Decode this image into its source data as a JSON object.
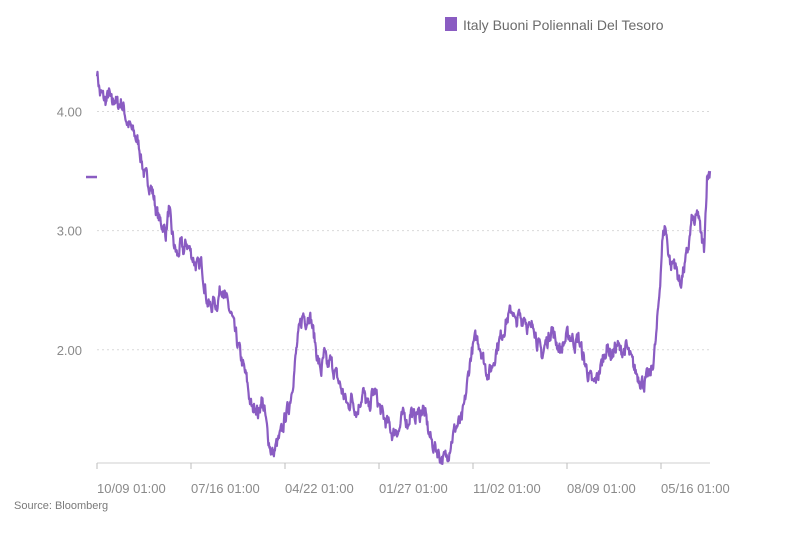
{
  "chart_data": {
    "type": "line",
    "title": "",
    "xlabel": "",
    "ylabel": "",
    "ylim": [
      1.05,
      4.6
    ],
    "y_ticks": [
      2.0,
      3.0,
      4.0
    ],
    "y_tick_labels": [
      "2.00",
      "3.00",
      "4.00"
    ],
    "x_tick_labels": [
      "10/09 01:00",
      "07/16 01:00",
      "04/22 01:00",
      "01/27 01:00",
      "11/02 01:00",
      "08/09 01:00",
      "05/16 01:00"
    ],
    "legend_position": "top-right",
    "last_value_marker": 3.45,
    "series": [
      {
        "name": "Italy Buoni Poliennali Del Tesoro",
        "color": "#8a5cc2",
        "keypoints": [
          [
            0,
            4.35
          ],
          [
            3,
            4.15
          ],
          [
            6,
            4.12
          ],
          [
            9,
            4.08
          ],
          [
            12,
            4.15
          ],
          [
            15,
            4.05
          ],
          [
            18,
            4.12
          ],
          [
            21,
            4.05
          ],
          [
            24,
            4.08
          ],
          [
            27,
            4.02
          ],
          [
            30,
            3.92
          ],
          [
            33,
            3.87
          ],
          [
            36,
            3.82
          ],
          [
            39,
            3.78
          ],
          [
            42,
            3.72
          ],
          [
            45,
            3.58
          ],
          [
            48,
            3.45
          ],
          [
            51,
            3.42
          ],
          [
            54,
            3.38
          ],
          [
            57,
            3.28
          ],
          [
            60,
            3.15
          ],
          [
            63,
            3.08
          ],
          [
            66,
            3.05
          ],
          [
            69,
            2.98
          ],
          [
            72,
            3.18
          ],
          [
            75,
            2.98
          ],
          [
            78,
            2.85
          ],
          [
            81,
            2.78
          ],
          [
            84,
            2.88
          ],
          [
            87,
            2.82
          ],
          [
            90,
            2.9
          ],
          [
            93,
            2.84
          ],
          [
            96,
            2.78
          ],
          [
            99,
            2.72
          ],
          [
            102,
            2.68
          ],
          [
            105,
            2.72
          ],
          [
            108,
            2.55
          ],
          [
            111,
            2.4
          ],
          [
            114,
            2.35
          ],
          [
            117,
            2.4
          ],
          [
            120,
            2.38
          ],
          [
            123,
            2.48
          ],
          [
            126,
            2.55
          ],
          [
            129,
            2.42
          ],
          [
            132,
            2.35
          ],
          [
            135,
            2.28
          ],
          [
            138,
            2.15
          ],
          [
            141,
            2.05
          ],
          [
            144,
            1.95
          ],
          [
            147,
            1.85
          ],
          [
            150,
            1.75
          ],
          [
            153,
            1.6
          ],
          [
            156,
            1.48
          ],
          [
            159,
            1.55
          ],
          [
            162,
            1.45
          ],
          [
            165,
            1.6
          ],
          [
            168,
            1.48
          ],
          [
            171,
            1.3
          ],
          [
            174,
            1.18
          ],
          [
            177,
            1.12
          ],
          [
            180,
            1.2
          ],
          [
            183,
            1.25
          ],
          [
            186,
            1.32
          ],
          [
            189,
            1.45
          ],
          [
            192,
            1.5
          ],
          [
            195,
            1.65
          ],
          [
            198,
            1.85
          ],
          [
            201,
            2.05
          ],
          [
            204,
            2.2
          ],
          [
            207,
            2.3
          ],
          [
            210,
            2.25
          ],
          [
            213,
            2.32
          ],
          [
            216,
            2.2
          ],
          [
            219,
            2.05
          ],
          [
            222,
            1.9
          ],
          [
            225,
            1.82
          ],
          [
            228,
            1.95
          ],
          [
            231,
            1.85
          ],
          [
            234,
            1.9
          ],
          [
            237,
            1.85
          ],
          [
            240,
            1.78
          ],
          [
            243,
            1.72
          ],
          [
            246,
            1.65
          ],
          [
            249,
            1.58
          ],
          [
            252,
            1.52
          ],
          [
            255,
            1.6
          ],
          [
            258,
            1.55
          ],
          [
            261,
            1.48
          ],
          [
            264,
            1.58
          ],
          [
            267,
            1.65
          ],
          [
            270,
            1.55
          ],
          [
            273,
            1.5
          ],
          [
            276,
            1.62
          ],
          [
            279,
            1.65
          ],
          [
            282,
            1.55
          ],
          [
            285,
            1.48
          ],
          [
            288,
            1.42
          ],
          [
            291,
            1.38
          ],
          [
            294,
            1.35
          ],
          [
            297,
            1.28
          ],
          [
            300,
            1.35
          ],
          [
            303,
            1.32
          ],
          [
            306,
            1.42
          ],
          [
            309,
            1.45
          ],
          [
            312,
            1.38
          ],
          [
            315,
            1.5
          ],
          [
            318,
            1.42
          ],
          [
            321,
            1.48
          ],
          [
            324,
            1.45
          ],
          [
            327,
            1.52
          ],
          [
            330,
            1.42
          ],
          [
            333,
            1.3
          ],
          [
            336,
            1.22
          ],
          [
            339,
            1.18
          ],
          [
            342,
            1.15
          ],
          [
            345,
            1.1
          ],
          [
            348,
            1.08
          ],
          [
            351,
            1.1
          ],
          [
            354,
            1.2
          ],
          [
            357,
            1.28
          ],
          [
            360,
            1.35
          ],
          [
            363,
            1.38
          ],
          [
            366,
            1.4
          ],
          [
            369,
            1.55
          ],
          [
            372,
            1.75
          ],
          [
            375,
            1.95
          ],
          [
            378,
            2.05
          ],
          [
            381,
            2.1
          ],
          [
            384,
            2.05
          ],
          [
            387,
            1.95
          ],
          [
            390,
            1.85
          ],
          [
            393,
            1.8
          ],
          [
            396,
            1.85
          ],
          [
            399,
            1.95
          ],
          [
            402,
            2.05
          ],
          [
            405,
            2.1
          ],
          [
            408,
            2.18
          ],
          [
            411,
            2.25
          ],
          [
            414,
            2.3
          ],
          [
            417,
            2.35
          ],
          [
            420,
            2.2
          ],
          [
            423,
            2.28
          ],
          [
            426,
            2.25
          ],
          [
            429,
            2.3
          ],
          [
            432,
            2.2
          ],
          [
            435,
            2.15
          ],
          [
            438,
            2.25
          ],
          [
            441,
            2.1
          ],
          [
            444,
            2.0
          ],
          [
            447,
            1.95
          ],
          [
            450,
            2.05
          ],
          [
            453,
            2.1
          ],
          [
            456,
            2.2
          ],
          [
            459,
            2.1
          ],
          [
            462,
            2.05
          ],
          [
            465,
            2.0
          ],
          [
            468,
            2.05
          ],
          [
            471,
            2.1
          ],
          [
            474,
            2.12
          ],
          [
            477,
            2.1
          ],
          [
            480,
            2.05
          ],
          [
            483,
            2.1
          ],
          [
            486,
            2.0
          ],
          [
            489,
            1.9
          ],
          [
            492,
            1.82
          ],
          [
            495,
            1.75
          ],
          [
            498,
            1.7
          ],
          [
            501,
            1.75
          ],
          [
            504,
            1.82
          ],
          [
            507,
            1.9
          ],
          [
            510,
            2.0
          ],
          [
            513,
            2.02
          ],
          [
            516,
            1.95
          ],
          [
            519,
            2.0
          ],
          [
            522,
            2.05
          ],
          [
            525,
            1.98
          ],
          [
            528,
            2.0
          ],
          [
            531,
            2.02
          ],
          [
            534,
            1.95
          ],
          [
            537,
            1.88
          ],
          [
            540,
            1.82
          ],
          [
            543,
            1.78
          ],
          [
            546,
            1.75
          ],
          [
            549,
            1.72
          ],
          [
            552,
            1.76
          ],
          [
            555,
            1.78
          ],
          [
            558,
            1.9
          ],
          [
            561,
            2.1
          ],
          [
            564,
            2.45
          ],
          [
            567,
            2.9
          ],
          [
            570,
            3.05
          ],
          [
            573,
            2.85
          ],
          [
            576,
            2.7
          ],
          [
            579,
            2.75
          ],
          [
            582,
            2.65
          ],
          [
            585,
            2.55
          ],
          [
            588,
            2.65
          ],
          [
            591,
            2.75
          ],
          [
            594,
            2.9
          ],
          [
            597,
            3.1
          ],
          [
            600,
            3.05
          ],
          [
            603,
            3.15
          ],
          [
            606,
            2.95
          ],
          [
            609,
            2.85
          ],
          [
            612,
            3.45
          ],
          [
            615,
            3.5
          ]
        ]
      }
    ]
  },
  "legend": {
    "label": "Italy Buoni Poliennali Del Tesoro"
  },
  "source": "Source: Bloomberg"
}
